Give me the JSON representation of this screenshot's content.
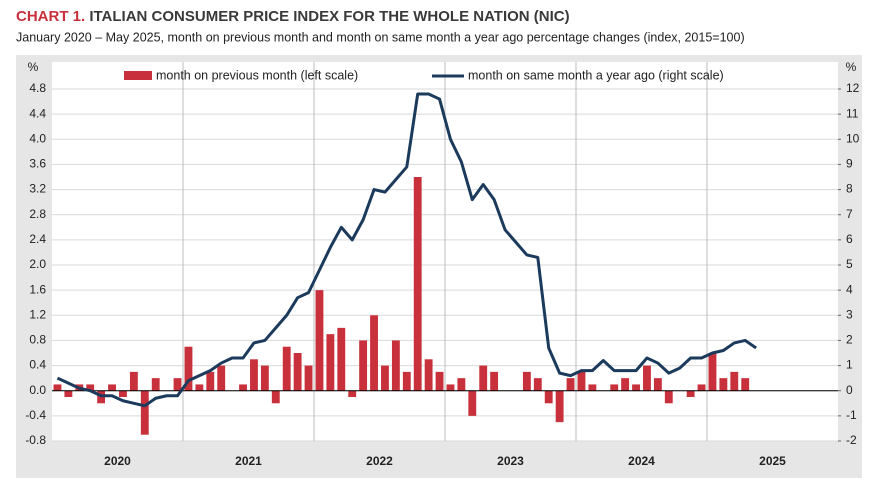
{
  "chart_data": {
    "type": "bar-line",
    "title_prefix": "CHART 1.",
    "title": "ITALIAN CONSUMER PRICE INDEX FOR THE WHOLE NATION (NIC)",
    "subtitle": "January 2020 – May 2025, month on previous month and month on same month a year ago percentage changes (index, 2015=100)",
    "y_unit": "%",
    "y2_unit": "%",
    "year_labels": [
      "2020",
      "2021",
      "2022",
      "2023",
      "2024",
      "2025"
    ],
    "series": [
      {
        "name": "month on previous month (left scale)",
        "type": "bar",
        "color": "#c8313c",
        "values": [
          0.1,
          -0.1,
          0.1,
          0.1,
          -0.2,
          0.1,
          -0.1,
          0.3,
          -0.7,
          0.2,
          0.0,
          0.2,
          0.7,
          0.1,
          0.3,
          0.4,
          0.0,
          0.1,
          0.5,
          0.4,
          -0.2,
          0.7,
          0.6,
          0.4,
          1.6,
          0.9,
          1.0,
          -0.1,
          0.8,
          1.2,
          0.4,
          0.8,
          0.3,
          3.4,
          0.5,
          0.3,
          0.1,
          0.2,
          -0.4,
          0.4,
          0.3,
          0.0,
          0.0,
          0.3,
          0.2,
          -0.2,
          -0.5,
          0.2,
          0.3,
          0.1,
          0.0,
          0.1,
          0.2,
          0.1,
          0.4,
          0.2,
          -0.2,
          0.0,
          -0.1,
          0.1,
          0.6,
          0.2,
          0.3,
          0.2,
          0.0
        ]
      },
      {
        "name": "month on same month a year ago (right scale)",
        "type": "line",
        "axis": "y2",
        "color": "#1b3a5c",
        "values": [
          0.5,
          0.3,
          0.1,
          0.0,
          -0.2,
          -0.2,
          -0.4,
          -0.5,
          -0.6,
          -0.3,
          -0.2,
          -0.2,
          0.4,
          0.6,
          0.8,
          1.1,
          1.3,
          1.3,
          1.9,
          2.0,
          2.5,
          3.0,
          3.7,
          3.9,
          4.8,
          5.7,
          6.5,
          6.0,
          6.8,
          8.0,
          7.9,
          8.4,
          8.9,
          11.8,
          11.8,
          11.6,
          10.0,
          9.1,
          7.6,
          8.2,
          7.6,
          6.4,
          5.9,
          5.4,
          5.3,
          1.7,
          0.7,
          0.6,
          0.8,
          0.8,
          1.2,
          0.8,
          0.8,
          0.8,
          1.3,
          1.1,
          0.7,
          0.9,
          1.3,
          1.3,
          1.5,
          1.6,
          1.9,
          2.0,
          1.7
        ]
      }
    ],
    "ylim": [
      -0.8,
      4.8
    ],
    "yticks": [
      -0.8,
      -0.4,
      {
        "value": 0,
        "label": "0.0"
      },
      0.4,
      0.8,
      1.2,
      1.6,
      {
        "value": 2,
        "label": "2.0"
      },
      2.4,
      2.8,
      3.2,
      3.6,
      {
        "value": 4,
        "label": "4.0"
      },
      4.4,
      4.8
    ],
    "y2lim": [
      -2,
      12
    ],
    "y2ticks": [
      -2,
      -1,
      0,
      1,
      2,
      3,
      4,
      5,
      6,
      7,
      8,
      9,
      10,
      11,
      12
    ],
    "grid": true,
    "legend": "top"
  }
}
